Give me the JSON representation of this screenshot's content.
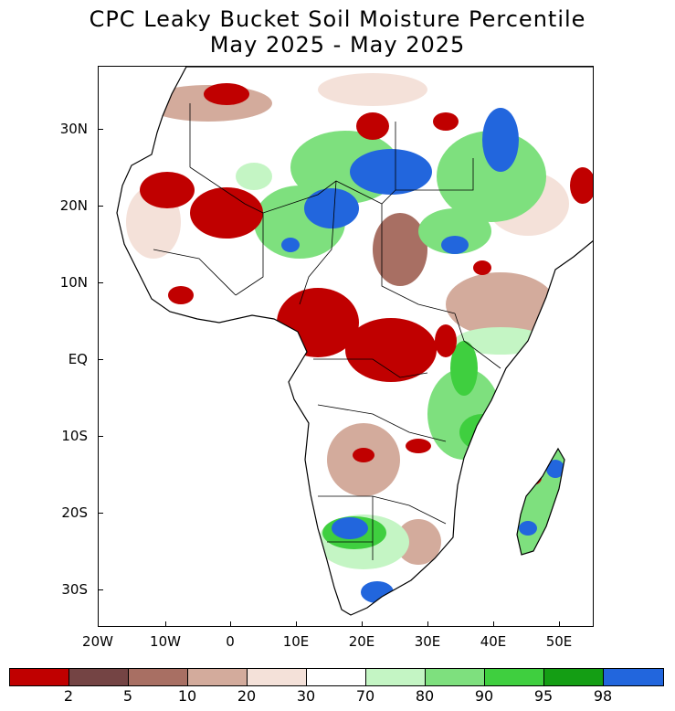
{
  "title": {
    "line1": "CPC Leaky Bucket Soil Moisture Percentile",
    "line2": "May 2025 - May 2025"
  },
  "map": {
    "region": "Africa",
    "latitude_labels": [
      "30N",
      "20N",
      "10N",
      "EQ",
      "10S",
      "20S",
      "30S"
    ],
    "longitude_labels": [
      "20W",
      "10W",
      "0",
      "10E",
      "20E",
      "30E",
      "40E",
      "50E"
    ]
  },
  "colorbar": {
    "colors": [
      "#c00000",
      "#744444",
      "#a86f63",
      "#d3ab9c",
      "#f4e1d9",
      "#ffffff",
      "#c4f5c4",
      "#7ee07e",
      "#3fcf3f",
      "#149e14",
      "#2266dd"
    ],
    "labels": [
      "2",
      "5",
      "10",
      "20",
      "30",
      "70",
      "80",
      "90",
      "95",
      "98"
    ]
  }
}
